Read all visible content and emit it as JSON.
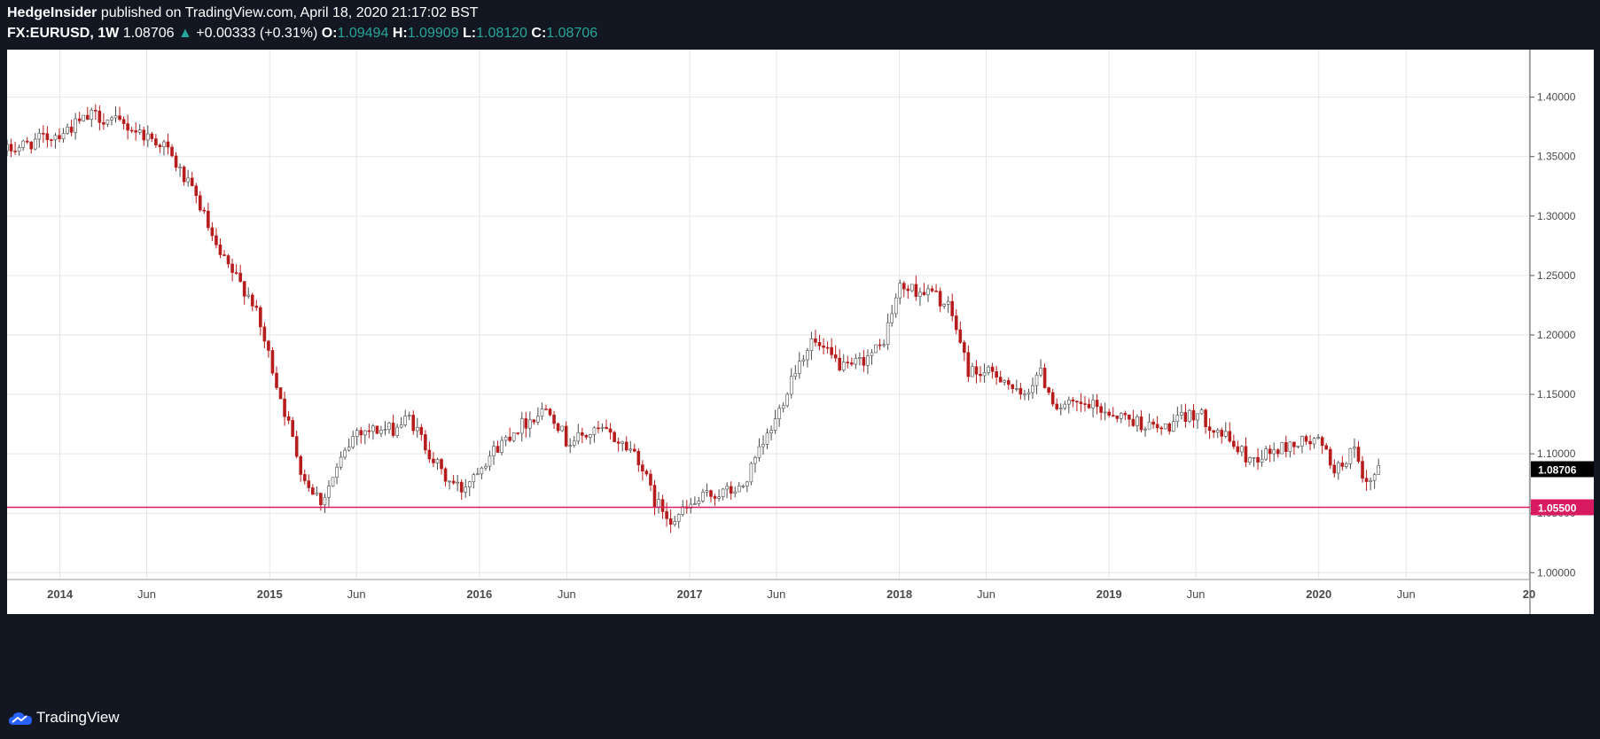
{
  "header": {
    "author": "HedgeInsider",
    "published_text": "published on TradingView.com, April 18, 2020 21:17:02 BST",
    "symbol": "FX:EURUSD, 1W",
    "last": "1.08706",
    "change": "+0.00333 (+0.31%)",
    "o_label": "O:",
    "o_value": "1.09494",
    "h_label": "H:",
    "h_value": "1.09909",
    "l_label": "L:",
    "l_value": "1.08120",
    "c_label": "C:",
    "c_value": "1.08706",
    "up_arrow": "▲"
  },
  "footer": {
    "brand": "TradingView",
    "logo_icon": "tradingview-cloud-icon"
  },
  "colors": {
    "background": "#131722",
    "chart_bg": "#ffffff",
    "grid": "#e6e6e6",
    "up": "#4a4a4a",
    "down": "#b71c1c",
    "horizontal_line": "#d81b60",
    "last_price_tag": "#000000",
    "accent_green": "#26a69a"
  },
  "chart_data": {
    "type": "candlestick",
    "symbol": "FX:EURUSD",
    "interval": "1W",
    "ylim": [
      0.995,
      1.44
    ],
    "y_ticks": [
      "1.40000",
      "1.35000",
      "1.30000",
      "1.25000",
      "1.20000",
      "1.15000",
      "1.10000",
      "1.05000",
      "1.00000"
    ],
    "x_tick_labels": [
      {
        "label": "2014",
        "date": "2014-01",
        "bold": true
      },
      {
        "label": "Jun",
        "date": "2014-06",
        "bold": false
      },
      {
        "label": "2015",
        "date": "2015-01",
        "bold": true
      },
      {
        "label": "Jun",
        "date": "2015-06",
        "bold": false
      },
      {
        "label": "2016",
        "date": "2016-01",
        "bold": true
      },
      {
        "label": "Jun",
        "date": "2016-06",
        "bold": false
      },
      {
        "label": "2017",
        "date": "2017-01",
        "bold": true
      },
      {
        "label": "Jun",
        "date": "2017-06",
        "bold": false
      },
      {
        "label": "2018",
        "date": "2018-01",
        "bold": true
      },
      {
        "label": "Jun",
        "date": "2018-06",
        "bold": false
      },
      {
        "label": "2019",
        "date": "2019-01",
        "bold": true
      },
      {
        "label": "Jun",
        "date": "2019-06",
        "bold": false
      },
      {
        "label": "2020",
        "date": "2020-01",
        "bold": true
      },
      {
        "label": "Jun",
        "date": "2020-06",
        "bold": false
      },
      {
        "label": "20",
        "date": "2021-01",
        "bold": true
      }
    ],
    "x_start": "2013-10",
    "x_end": "2021-01",
    "horizontal_line": {
      "value": 1.055,
      "label": "1.05500"
    },
    "last_price": {
      "value": 1.08706,
      "label": "1.08706"
    },
    "close_anchors": [
      {
        "date": "2013-10",
        "close": 1.355
      },
      {
        "date": "2014-01",
        "close": 1.37
      },
      {
        "date": "2014-03",
        "close": 1.385
      },
      {
        "date": "2014-05",
        "close": 1.375
      },
      {
        "date": "2014-07",
        "close": 1.36
      },
      {
        "date": "2014-09",
        "close": 1.31
      },
      {
        "date": "2014-10",
        "close": 1.27
      },
      {
        "date": "2014-12",
        "close": 1.23
      },
      {
        "date": "2015-01",
        "close": 1.18
      },
      {
        "date": "2015-03",
        "close": 1.08
      },
      {
        "date": "2015-04",
        "close": 1.06
      },
      {
        "date": "2015-06",
        "close": 1.12
      },
      {
        "date": "2015-08",
        "close": 1.12
      },
      {
        "date": "2015-09",
        "close": 1.13
      },
      {
        "date": "2015-11",
        "close": 1.08
      },
      {
        "date": "2015-12",
        "close": 1.07
      },
      {
        "date": "2016-01",
        "close": 1.09
      },
      {
        "date": "2016-03",
        "close": 1.12
      },
      {
        "date": "2016-05",
        "close": 1.14
      },
      {
        "date": "2016-06",
        "close": 1.11
      },
      {
        "date": "2016-08",
        "close": 1.12
      },
      {
        "date": "2016-10",
        "close": 1.1
      },
      {
        "date": "2016-11",
        "close": 1.06
      },
      {
        "date": "2016-12",
        "close": 1.045
      },
      {
        "date": "2017-02",
        "close": 1.065
      },
      {
        "date": "2017-04",
        "close": 1.07
      },
      {
        "date": "2017-06",
        "close": 1.13
      },
      {
        "date": "2017-07",
        "close": 1.17
      },
      {
        "date": "2017-08",
        "close": 1.195
      },
      {
        "date": "2017-10",
        "close": 1.17
      },
      {
        "date": "2017-12",
        "close": 1.19
      },
      {
        "date": "2018-01",
        "close": 1.24
      },
      {
        "date": "2018-03",
        "close": 1.235
      },
      {
        "date": "2018-04",
        "close": 1.22
      },
      {
        "date": "2018-05",
        "close": 1.17
      },
      {
        "date": "2018-07",
        "close": 1.165
      },
      {
        "date": "2018-08",
        "close": 1.145
      },
      {
        "date": "2018-09",
        "close": 1.17
      },
      {
        "date": "2018-10",
        "close": 1.14
      },
      {
        "date": "2018-12",
        "close": 1.14
      },
      {
        "date": "2019-02",
        "close": 1.13
      },
      {
        "date": "2019-04",
        "close": 1.12
      },
      {
        "date": "2019-06",
        "close": 1.135
      },
      {
        "date": "2019-08",
        "close": 1.11
      },
      {
        "date": "2019-09",
        "close": 1.095
      },
      {
        "date": "2019-11",
        "close": 1.105
      },
      {
        "date": "2019-12",
        "close": 1.11
      },
      {
        "date": "2020-01",
        "close": 1.11
      },
      {
        "date": "2020-02",
        "close": 1.085
      },
      {
        "date": "2020-03",
        "close": 1.105
      },
      {
        "date": "2020-03-20",
        "close": 1.07
      },
      {
        "date": "2020-04-18",
        "close": 1.087
      }
    ]
  }
}
